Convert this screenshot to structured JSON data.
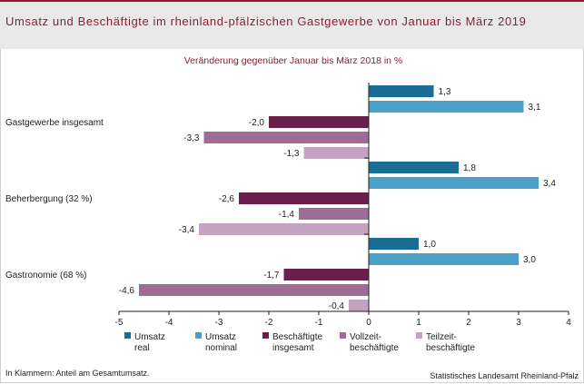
{
  "title": "Umsatz und Beschäftigte im rheinland-pfälzischen Gastgewerbe von Januar bis März 2019",
  "footnote": "In Klammern: Anteil am Gesamtumsatz.",
  "source": "Statistisches Landesamt Rheinland-Pfalz",
  "chart_data": {
    "type": "bar",
    "orientation": "horizontal",
    "subtitle": "Veränderung gegenüber Januar bis März 2018 in %",
    "xlim": [
      -5,
      4
    ],
    "x_ticks": [
      "-5",
      "-4",
      "-3",
      "-2",
      "-1",
      "0",
      "1",
      "2",
      "3",
      "4"
    ],
    "grid": false,
    "legend_position": "bottom",
    "categories": [
      "Gastgewerbe insgesamt",
      "Beherbergung (32 %)",
      "Gastronomie (68 %)"
    ],
    "series": [
      {
        "name": "Umsatz real",
        "legend_lines": [
          "Umsatz",
          "real"
        ],
        "color": "#1a6d96",
        "values": [
          1.3,
          1.8,
          1.0
        ],
        "labels": [
          "1,3",
          "1,8",
          "1,0"
        ]
      },
      {
        "name": "Umsatz nominal",
        "legend_lines": [
          "Umsatz",
          "nominal"
        ],
        "color": "#4aa0c6",
        "values": [
          3.1,
          3.4,
          3.0
        ],
        "labels": [
          "3,1",
          "3,4",
          "3,0"
        ]
      },
      {
        "name": "Beschäftigte insgesamt",
        "legend_lines": [
          "Beschäftigte",
          "insgesamt"
        ],
        "color": "#6a1e4a",
        "values": [
          -2.0,
          -2.6,
          -1.7
        ],
        "labels": [
          "-2,0",
          "-2,6",
          "-1,7"
        ]
      },
      {
        "name": "Vollzeitbeschäftigte",
        "legend_lines": [
          "Vollzeit-",
          "beschäftigte"
        ],
        "color": "#9e6c95",
        "values": [
          -3.3,
          -1.4,
          -4.6
        ],
        "labels": [
          "-3,3",
          "-1,4",
          "-4,6"
        ]
      },
      {
        "name": "Teilzeitbeschäftigte",
        "legend_lines": [
          "Teilzeit-",
          "beschäftigte"
        ],
        "color": "#c5a3c0",
        "values": [
          -1.3,
          -3.4,
          -0.4
        ],
        "labels": [
          "-1,3",
          "-3,4",
          "-0,4"
        ]
      }
    ]
  }
}
